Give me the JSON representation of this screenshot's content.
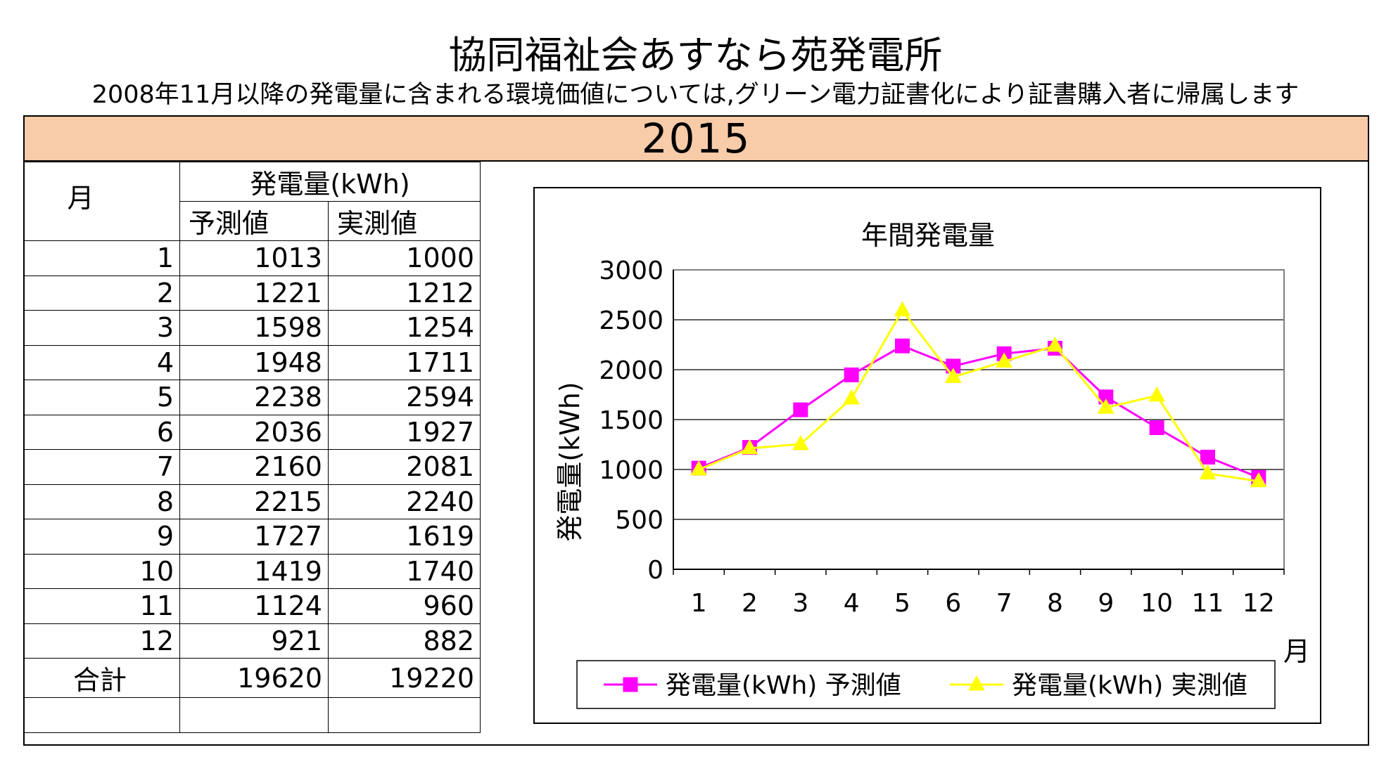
{
  "header": {
    "title": "協同福祉会あすなら苑発電所",
    "subtitle": "2008年11月以降の発電量に含まれる環境価値については,グリーン電力証書化により証書購入者に帰属します",
    "year": "2015"
  },
  "table": {
    "month_header": "月",
    "group_header": "発電量(kWh)",
    "col_predicted": "予測値",
    "col_actual": "実測値",
    "rows": [
      {
        "month": "1",
        "predicted": "1013",
        "actual": "1000"
      },
      {
        "month": "2",
        "predicted": "1221",
        "actual": "1212"
      },
      {
        "month": "3",
        "predicted": "1598",
        "actual": "1254"
      },
      {
        "month": "4",
        "predicted": "1948",
        "actual": "1711"
      },
      {
        "month": "5",
        "predicted": "2238",
        "actual": "2594"
      },
      {
        "month": "6",
        "predicted": "2036",
        "actual": "1927"
      },
      {
        "month": "7",
        "predicted": "2160",
        "actual": "2081"
      },
      {
        "month": "8",
        "predicted": "2215",
        "actual": "2240"
      },
      {
        "month": "9",
        "predicted": "1727",
        "actual": "1619"
      },
      {
        "month": "10",
        "predicted": "1419",
        "actual": "1740"
      },
      {
        "month": "11",
        "predicted": "1124",
        "actual": "960"
      },
      {
        "month": "12",
        "predicted": "921",
        "actual": "882"
      }
    ],
    "total_label": "合計",
    "total_predicted": "19620",
    "total_actual": "19220"
  },
  "chart_data": {
    "type": "line",
    "title": "年間発電量",
    "xlabel": "月",
    "ylabel": "発電量(kWh)",
    "categories": [
      "1",
      "2",
      "3",
      "4",
      "5",
      "6",
      "7",
      "8",
      "9",
      "10",
      "11",
      "12"
    ],
    "ylim": [
      0,
      3000
    ],
    "yticks": [
      0,
      500,
      1000,
      1500,
      2000,
      2500,
      3000
    ],
    "grid": true,
    "legend_position": "bottom",
    "series": [
      {
        "name": "発電量(kWh) 予測値",
        "values": [
          1013,
          1221,
          1598,
          1948,
          2238,
          2036,
          2160,
          2215,
          1727,
          1419,
          1124,
          921
        ],
        "color": "#ff00ff",
        "marker": "square"
      },
      {
        "name": "発電量(kWh) 実測値",
        "values": [
          1000,
          1212,
          1254,
          1711,
          2594,
          1927,
          2081,
          2240,
          1619,
          1740,
          960,
          882
        ],
        "color": "#ffff00",
        "marker": "triangle"
      }
    ]
  }
}
